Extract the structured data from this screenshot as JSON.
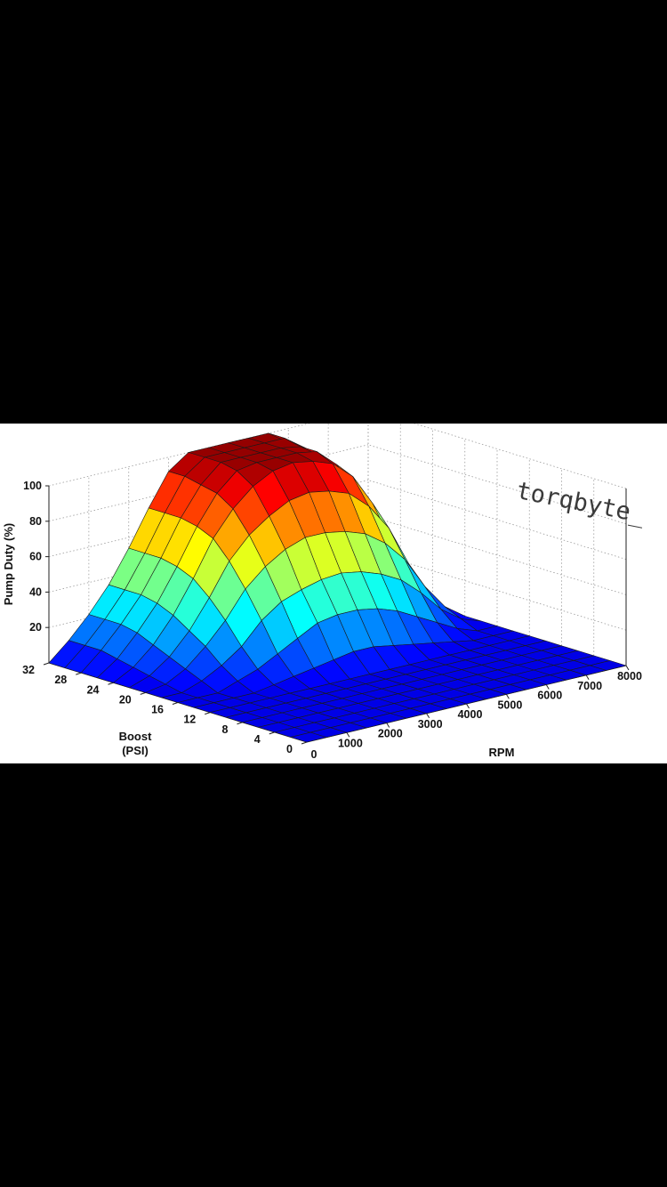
{
  "watermark": "torqbyte_",
  "chart_data": {
    "type": "surface",
    "zlabel": "Pump Duty (%)",
    "xlabel": "RPM",
    "ylabel": "Boost (PSI)",
    "ylabel_lines": [
      "Boost",
      "(PSI)"
    ],
    "z_ticks": [
      20,
      40,
      60,
      80,
      100
    ],
    "y_ticks": [
      0,
      4,
      8,
      12,
      16,
      20,
      24,
      28,
      32
    ],
    "x_ticks": [
      1000,
      2000,
      3000,
      4000,
      5000,
      6000,
      7000,
      8000
    ],
    "rpm": [
      0,
      500,
      1000,
      1500,
      2000,
      2500,
      3000,
      3500,
      4000,
      4500,
      5000,
      5500,
      6000,
      6500,
      7000,
      7500,
      8000
    ],
    "boost": [
      0,
      2,
      4,
      6,
      8,
      10,
      12,
      14,
      16,
      18,
      20,
      22,
      24,
      26,
      28,
      30,
      32
    ],
    "duty": [
      [
        0,
        0,
        0,
        0,
        0,
        0,
        0,
        0,
        0,
        0,
        0,
        0,
        0,
        0,
        0,
        0,
        0
      ],
      [
        0,
        0,
        0,
        0,
        0,
        0,
        0,
        0,
        0,
        0,
        0,
        0,
        0,
        0,
        0,
        0,
        0
      ],
      [
        0,
        0,
        0,
        0,
        0,
        0,
        0,
        0,
        0,
        0,
        0,
        0,
        0,
        0,
        0,
        0,
        0
      ],
      [
        0,
        0,
        0,
        0,
        0,
        0,
        0,
        0,
        0,
        0,
        0,
        0,
        0,
        0,
        0,
        0,
        0
      ],
      [
        0,
        0,
        0,
        0,
        0,
        0,
        0,
        0,
        0,
        0,
        0,
        0,
        0,
        0,
        0,
        0,
        0
      ],
      [
        0,
        0,
        0,
        0,
        0,
        0,
        0,
        0,
        0,
        0,
        0,
        0,
        0,
        0,
        0,
        0,
        0
      ],
      [
        0,
        0,
        0,
        0,
        0,
        0,
        0,
        0,
        0,
        0,
        0,
        0,
        0,
        0,
        0,
        0,
        0
      ],
      [
        0,
        0,
        0,
        0,
        2,
        4,
        6,
        8,
        10,
        10,
        8,
        6,
        4,
        2,
        0,
        0,
        0
      ],
      [
        0,
        0,
        0,
        4,
        8,
        14,
        20,
        26,
        28,
        28,
        26,
        22,
        16,
        10,
        4,
        0,
        0
      ],
      [
        0,
        0,
        4,
        10,
        18,
        30,
        38,
        42,
        45,
        46,
        44,
        40,
        34,
        24,
        12,
        4,
        0
      ],
      [
        0,
        2,
        8,
        18,
        30,
        45,
        55,
        62,
        66,
        66,
        64,
        60,
        52,
        40,
        22,
        8,
        0
      ],
      [
        0,
        4,
        12,
        24,
        40,
        58,
        70,
        78,
        84,
        86,
        84,
        80,
        70,
        55,
        32,
        12,
        0
      ],
      [
        0,
        6,
        16,
        30,
        48,
        68,
        82,
        92,
        98,
        100,
        98,
        94,
        84,
        66,
        40,
        16,
        0
      ],
      [
        0,
        8,
        20,
        34,
        52,
        72,
        88,
        98,
        100,
        100,
        100,
        98,
        88,
        70,
        44,
        18,
        0
      ],
      [
        0,
        10,
        22,
        36,
        54,
        74,
        90,
        100,
        100,
        100,
        100,
        98,
        90,
        72,
        46,
        20,
        0
      ],
      [
        0,
        10,
        22,
        36,
        54,
        74,
        92,
        100,
        100,
        100,
        100,
        100,
        92,
        74,
        48,
        20,
        0
      ],
      [
        0,
        10,
        22,
        36,
        54,
        74,
        92,
        100,
        100,
        100,
        100,
        100,
        92,
        74,
        48,
        20,
        0
      ]
    ]
  }
}
